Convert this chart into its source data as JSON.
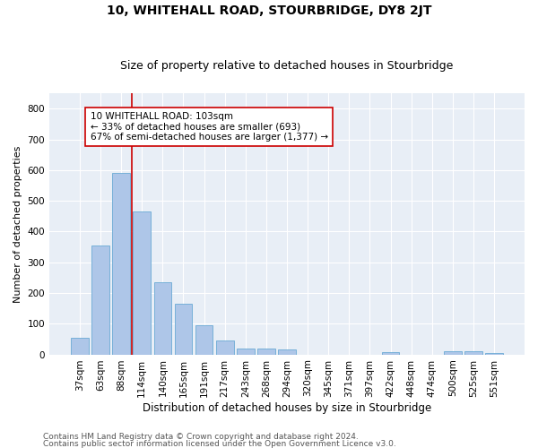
{
  "title1": "10, WHITEHALL ROAD, STOURBRIDGE, DY8 2JT",
  "title2": "Size of property relative to detached houses in Stourbridge",
  "xlabel": "Distribution of detached houses by size in Stourbridge",
  "ylabel": "Number of detached properties",
  "categories": [
    "37sqm",
    "63sqm",
    "88sqm",
    "114sqm",
    "140sqm",
    "165sqm",
    "191sqm",
    "217sqm",
    "243sqm",
    "268sqm",
    "294sqm",
    "320sqm",
    "345sqm",
    "371sqm",
    "397sqm",
    "422sqm",
    "448sqm",
    "474sqm",
    "500sqm",
    "525sqm",
    "551sqm"
  ],
  "values": [
    55,
    355,
    590,
    465,
    235,
    165,
    95,
    45,
    20,
    20,
    15,
    0,
    0,
    0,
    0,
    8,
    0,
    0,
    10,
    10,
    5
  ],
  "bar_color": "#aec6e8",
  "bar_edgecolor": "#6aaad4",
  "vline_color": "#cc0000",
  "vline_xindex": 2.5,
  "annotation_text": "10 WHITEHALL ROAD: 103sqm\n← 33% of detached houses are smaller (693)\n67% of semi-detached houses are larger (1,377) →",
  "annotation_box_facecolor": "#ffffff",
  "annotation_box_edgecolor": "#cc0000",
  "ylim": [
    0,
    850
  ],
  "yticks": [
    0,
    100,
    200,
    300,
    400,
    500,
    600,
    700,
    800
  ],
  "background_color": "#e8eef6",
  "footer1": "Contains HM Land Registry data © Crown copyright and database right 2024.",
  "footer2": "Contains public sector information licensed under the Open Government Licence v3.0.",
  "title1_fontsize": 10,
  "title2_fontsize": 9,
  "xlabel_fontsize": 8.5,
  "ylabel_fontsize": 8,
  "tick_fontsize": 7.5,
  "annotation_fontsize": 7.5,
  "footer_fontsize": 6.5
}
